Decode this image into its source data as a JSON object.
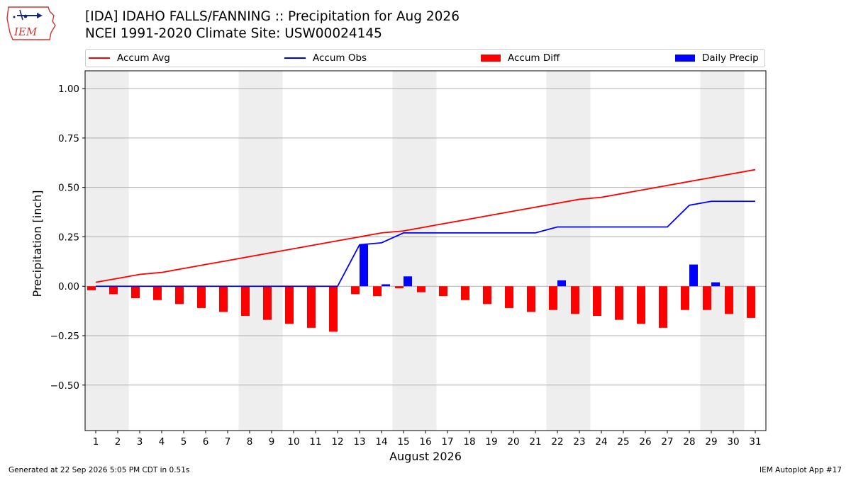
{
  "header": {
    "title_line1": "[IDA] IDAHO FALLS/FANNING :: Precipitation for Aug 2026",
    "title_line2": "NCEI 1991-2020 Climate Site: USW00024145",
    "logo_text": "IEM"
  },
  "footer": {
    "generated": "Generated at 22 Sep 2026 5:05 PM CDT in 0.51s",
    "app": "IEM Autoplot App #17"
  },
  "colors": {
    "accum_avg": "#ff0000",
    "accum_obs": "#0000ff",
    "accum_diff": "#ff0000",
    "daily_precip": "#0000ff",
    "weekend_shade": "#eeeeee",
    "grid": "#b0b0b0"
  },
  "chart_data": {
    "type": "bar",
    "xlabel": "August 2026",
    "ylabel": "Precipitation [inch]",
    "ylim": [
      -0.73,
      1.09
    ],
    "yticks": [
      1.0,
      0.75,
      0.5,
      0.25,
      0.0,
      -0.25,
      -0.5
    ],
    "ytick_labels": [
      "1.00",
      "0.75",
      "0.50",
      "0.25",
      "0.00",
      "−0.25",
      "−0.50"
    ],
    "grid": true,
    "legend_position": "top",
    "days": [
      1,
      2,
      3,
      4,
      5,
      6,
      7,
      8,
      9,
      10,
      11,
      12,
      13,
      14,
      15,
      16,
      17,
      18,
      19,
      20,
      21,
      22,
      23,
      24,
      25,
      26,
      27,
      28,
      29,
      30,
      31
    ],
    "weekend_shading": [
      [
        1,
        2
      ],
      [
        8,
        9
      ],
      [
        15,
        16
      ],
      [
        22,
        23
      ],
      [
        29,
        30
      ]
    ],
    "series": [
      {
        "name": "Accum Avg",
        "kind": "line",
        "values": [
          0.02,
          0.04,
          0.06,
          0.07,
          0.09,
          0.11,
          0.13,
          0.15,
          0.17,
          0.19,
          0.21,
          0.23,
          0.25,
          0.27,
          0.28,
          0.3,
          0.32,
          0.34,
          0.36,
          0.38,
          0.4,
          0.42,
          0.44,
          0.45,
          0.47,
          0.49,
          0.51,
          0.53,
          0.55,
          0.57,
          0.59
        ]
      },
      {
        "name": "Accum Obs",
        "kind": "line",
        "values": [
          0,
          0,
          0,
          0,
          0,
          0,
          0,
          0,
          0,
          0,
          0,
          0,
          0.21,
          0.22,
          0.27,
          0.27,
          0.27,
          0.27,
          0.27,
          0.27,
          0.27,
          0.3,
          0.3,
          0.3,
          0.3,
          0.3,
          0.3,
          0.41,
          0.43,
          0.43,
          0.43
        ]
      },
      {
        "name": "Accum Diff",
        "kind": "bar",
        "values": [
          -0.02,
          -0.04,
          -0.06,
          -0.07,
          -0.09,
          -0.11,
          -0.13,
          -0.15,
          -0.17,
          -0.19,
          -0.21,
          -0.23,
          -0.04,
          -0.05,
          -0.01,
          -0.03,
          -0.05,
          -0.07,
          -0.09,
          -0.11,
          -0.13,
          -0.12,
          -0.14,
          -0.15,
          -0.17,
          -0.19,
          -0.21,
          -0.12,
          -0.12,
          -0.14,
          -0.16
        ]
      },
      {
        "name": "Daily Precip",
        "kind": "bar",
        "values": [
          0,
          0,
          0,
          0,
          0,
          0,
          0,
          0,
          0,
          0,
          0,
          0,
          0.21,
          0.01,
          0.05,
          0,
          0,
          0,
          0,
          0,
          0,
          0.03,
          0,
          0,
          0,
          0,
          0,
          0.11,
          0.02,
          0,
          0
        ]
      }
    ]
  }
}
